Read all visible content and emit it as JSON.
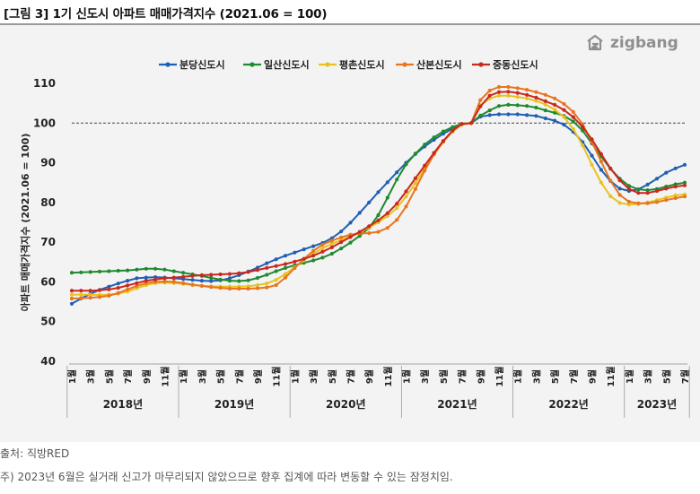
{
  "title": "[그림 3] 1기 신도시 아파트 매매가격지수 (2021.06 = 100)",
  "brand": "zigbang",
  "source": "출처:  직방RED",
  "note": "주) 2023년 6월은 실거래 신고가 마무리되지 않았으므로 향후 집계에 따라 변동할 수 있는 잠정치임.",
  "colors": {
    "분당신도시": "#1f5fb4",
    "일산신도시": "#1f8a2e",
    "평촌신도시": "#e8c21f",
    "산본신도시": "#e8751f",
    "중동신도시": "#c8281e"
  },
  "chart_data": {
    "type": "line",
    "ylabel": "아파트 매매가격지수 (2021.06 = 100)",
    "ylim": [
      40,
      110
    ],
    "yticks": [
      40,
      50,
      60,
      70,
      80,
      90,
      100,
      110
    ],
    "reference_line": 100,
    "month_ticks": [
      "1월",
      "3월",
      "5월",
      "7월",
      "9월",
      "11월"
    ],
    "years": [
      "2018년",
      "2019년",
      "2020년",
      "2021년",
      "2022년",
      "2023년"
    ],
    "x_start": "2018-01",
    "x_end": "2023-06",
    "series": [
      {
        "name": "분당신도시",
        "values": [
          54.5,
          55.8,
          57,
          58,
          58.8,
          59.6,
          60.3,
          60.9,
          61.1,
          61.2,
          61.1,
          60.9,
          60.7,
          60.5,
          60.3,
          60.2,
          60.4,
          60.9,
          61.7,
          62.6,
          63.6,
          64.7,
          65.7,
          66.6,
          67.4,
          68.2,
          69,
          69.8,
          71,
          72.7,
          74.9,
          77.4,
          80,
          82.6,
          85.1,
          87.6,
          90,
          92.2,
          94.1,
          95.8,
          97.3,
          98.6,
          99.7,
          100,
          101.6,
          102,
          102.2,
          102.2,
          102.2,
          102,
          101.8,
          101.2,
          100.6,
          99.6,
          97.8,
          95.2,
          91.8,
          88.2,
          85.4,
          83.5,
          82.9,
          83.3,
          84.5,
          86,
          87.5,
          88.6,
          89.5
        ]
      },
      {
        "name": "일산신도시",
        "values": [
          62.3,
          62.4,
          62.5,
          62.6,
          62.7,
          62.8,
          62.9,
          63.1,
          63.3,
          63.3,
          63.1,
          62.7,
          62.3,
          61.9,
          61.5,
          61,
          60.6,
          60.3,
          60.2,
          60.4,
          61,
          61.8,
          62.7,
          63.5,
          64.2,
          64.8,
          65.4,
          66.1,
          67.1,
          68.4,
          69.9,
          71.6,
          73.6,
          76.8,
          81.2,
          85.8,
          89.6,
          92.3,
          94.6,
          96.4,
          97.9,
          99,
          99.8,
          100,
          101.9,
          103.2,
          104.3,
          104.6,
          104.5,
          104.3,
          103.9,
          103.2,
          102.6,
          101.8,
          100.4,
          98.1,
          94.9,
          91.6,
          88.5,
          86,
          84.2,
          83.3,
          83.1,
          83.4,
          84,
          84.6,
          85
        ]
      },
      {
        "name": "평촌신도시",
        "values": [
          56.8,
          56.8,
          56.8,
          56.7,
          56.8,
          57,
          57.6,
          58.4,
          59.2,
          59.7,
          59.8,
          59.7,
          59.5,
          59.2,
          59,
          58.9,
          58.8,
          58.8,
          58.8,
          58.9,
          59.2,
          59.6,
          60.5,
          62,
          63.7,
          65.4,
          67.1,
          68.5,
          69.6,
          70.5,
          71.5,
          72.5,
          73.7,
          75,
          76.6,
          78.6,
          81.5,
          84.9,
          88.6,
          92.1,
          95.2,
          97.8,
          99.6,
          100,
          104.5,
          106.2,
          106.9,
          106.9,
          106.6,
          106.2,
          105.6,
          104.7,
          103.4,
          101.5,
          98.5,
          94.4,
          89.5,
          85,
          81.6,
          79.9,
          79.5,
          79.6,
          80,
          80.6,
          81.2,
          81.8,
          82
        ]
      },
      {
        "name": "산본신도시",
        "values": [
          55.8,
          55.9,
          56,
          56.2,
          56.5,
          57.2,
          58.1,
          59,
          59.7,
          60,
          60.1,
          60,
          59.7,
          59.3,
          59,
          58.7,
          58.5,
          58.3,
          58.3,
          58.3,
          58.4,
          58.6,
          59.2,
          61.1,
          63.5,
          65.8,
          67.8,
          69.4,
          70.4,
          71.2,
          71.9,
          72.2,
          72.3,
          72.6,
          73.6,
          75.6,
          79,
          83.4,
          88,
          92.1,
          95.4,
          98.1,
          99.8,
          100,
          105.8,
          108.2,
          109.1,
          109.1,
          108.8,
          108.4,
          107.8,
          107.1,
          106.2,
          104.8,
          102.8,
          99.7,
          95.3,
          90.3,
          85.5,
          81.9,
          80.2,
          79.8,
          79.8,
          80.1,
          80.6,
          81.1,
          81.5
        ]
      },
      {
        "name": "중동신도시",
        "values": [
          57.8,
          57.8,
          57.8,
          57.9,
          58.1,
          58.5,
          59.1,
          59.7,
          60.3,
          60.6,
          60.9,
          61.1,
          61.3,
          61.5,
          61.7,
          61.8,
          61.9,
          62,
          62.2,
          62.5,
          63,
          63.5,
          64,
          64.5,
          65.1,
          65.8,
          66.6,
          67.6,
          68.7,
          70,
          71.3,
          72.6,
          74,
          75.5,
          77.3,
          79.7,
          82.8,
          86.1,
          89.3,
          92.5,
          95.5,
          98.1,
          99.8,
          100,
          104.2,
          106.9,
          107.8,
          107.9,
          107.6,
          107.1,
          106.4,
          105.5,
          104.6,
          103.3,
          101.5,
          99,
          95.9,
          92.2,
          88.6,
          85.6,
          83.4,
          82.4,
          82.4,
          82.9,
          83.5,
          84,
          84.3
        ]
      }
    ]
  }
}
